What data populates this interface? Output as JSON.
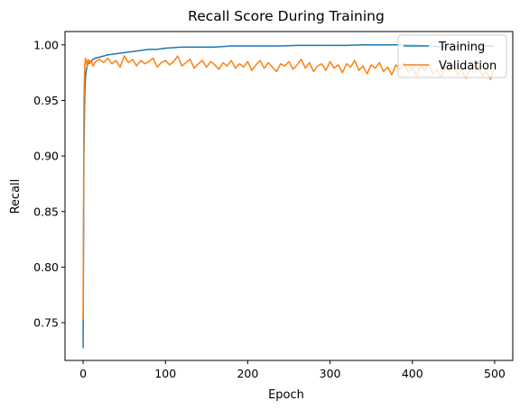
{
  "chart_data": {
    "type": "line",
    "title": "Recall Score During Training",
    "xlabel": "Epoch",
    "ylabel": "Recall",
    "xlim": [
      -22,
      522
    ],
    "ylim": [
      0.716,
      1.012
    ],
    "xticks": [
      0,
      100,
      200,
      300,
      400,
      500
    ],
    "yticks": [
      0.75,
      0.8,
      0.85,
      0.9,
      0.95,
      1.0
    ],
    "ytick_labels": [
      "0.75",
      "0.80",
      "0.85",
      "0.90",
      "0.95",
      "1.00"
    ],
    "grid": false,
    "legend_position": "top-right",
    "series": [
      {
        "name": "Training",
        "color": "#1f77b4",
        "x": [
          0,
          1,
          2,
          3,
          4,
          5,
          6,
          8,
          10,
          12,
          15,
          20,
          25,
          30,
          40,
          50,
          60,
          70,
          80,
          90,
          100,
          120,
          140,
          160,
          180,
          200,
          220,
          240,
          260,
          280,
          300,
          320,
          340,
          360,
          380,
          400,
          420,
          440,
          460,
          480,
          499
        ],
        "y": [
          0.727,
          0.905,
          0.955,
          0.972,
          0.978,
          0.981,
          0.983,
          0.985,
          0.986,
          0.987,
          0.988,
          0.989,
          0.99,
          0.991,
          0.992,
          0.993,
          0.994,
          0.995,
          0.996,
          0.996,
          0.997,
          0.998,
          0.998,
          0.998,
          0.999,
          0.999,
          0.999,
          0.999,
          0.9995,
          0.9995,
          0.9995,
          0.9995,
          1.0,
          1.0,
          1.0,
          1.0,
          0.999,
          0.998,
          0.999,
          0.999,
          0.999
        ]
      },
      {
        "name": "Validation",
        "color": "#ff7f0e",
        "x": [
          0,
          1,
          2,
          3,
          4,
          5,
          6,
          8,
          10,
          12,
          15,
          20,
          25,
          30,
          35,
          40,
          45,
          50,
          55,
          60,
          65,
          70,
          75,
          80,
          85,
          90,
          95,
          100,
          105,
          110,
          115,
          120,
          125,
          130,
          135,
          140,
          145,
          150,
          155,
          160,
          165,
          170,
          175,
          180,
          185,
          190,
          195,
          200,
          205,
          210,
          215,
          220,
          225,
          230,
          235,
          240,
          245,
          250,
          255,
          260,
          265,
          270,
          275,
          280,
          285,
          290,
          295,
          300,
          305,
          310,
          315,
          320,
          325,
          330,
          335,
          340,
          345,
          350,
          355,
          360,
          365,
          370,
          375,
          380,
          385,
          390,
          395,
          400,
          405,
          410,
          415,
          420,
          425,
          430,
          435,
          440,
          445,
          450,
          455,
          460,
          465,
          470,
          475,
          480,
          485,
          490,
          495,
          499
        ],
        "y": [
          0.753,
          0.95,
          0.982,
          0.988,
          0.985,
          0.98,
          0.987,
          0.983,
          0.986,
          0.981,
          0.985,
          0.987,
          0.984,
          0.988,
          0.983,
          0.986,
          0.98,
          0.99,
          0.984,
          0.987,
          0.981,
          0.986,
          0.983,
          0.985,
          0.988,
          0.98,
          0.984,
          0.986,
          0.982,
          0.985,
          0.99,
          0.981,
          0.984,
          0.987,
          0.979,
          0.983,
          0.986,
          0.98,
          0.985,
          0.982,
          0.978,
          0.984,
          0.981,
          0.986,
          0.979,
          0.983,
          0.98,
          0.985,
          0.977,
          0.982,
          0.986,
          0.979,
          0.984,
          0.98,
          0.976,
          0.983,
          0.981,
          0.985,
          0.978,
          0.982,
          0.987,
          0.979,
          0.984,
          0.976,
          0.981,
          0.983,
          0.977,
          0.985,
          0.979,
          0.982,
          0.975,
          0.983,
          0.98,
          0.986,
          0.977,
          0.981,
          0.974,
          0.982,
          0.979,
          0.984,
          0.976,
          0.98,
          0.973,
          0.982,
          0.978,
          0.984,
          0.975,
          0.979,
          0.972,
          0.981,
          0.977,
          0.983,
          0.974,
          0.978,
          0.971,
          0.98,
          0.976,
          0.982,
          0.973,
          0.977,
          0.97,
          0.979,
          0.975,
          0.981,
          0.972,
          0.976,
          0.969,
          0.978
        ]
      }
    ]
  }
}
